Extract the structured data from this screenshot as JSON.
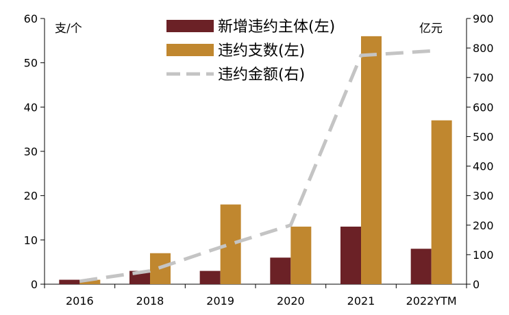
{
  "chart_data": {
    "type": "bar",
    "categories": [
      "2016",
      "2018",
      "2019",
      "2020",
      "2021",
      "2022YTM"
    ],
    "series": [
      {
        "name": "新增违约主体(左)",
        "kind": "bar",
        "axis": "left",
        "color": "#6b2126",
        "values": [
          1,
          3,
          3,
          6,
          13,
          8
        ]
      },
      {
        "name": "违约支数(左)",
        "kind": "bar",
        "axis": "left",
        "color": "#c0872f",
        "values": [
          1,
          7,
          18,
          13,
          56,
          37
        ]
      },
      {
        "name": "违约金额(右)",
        "kind": "line",
        "style": "dashed",
        "axis": "right",
        "color": "#c4c4c4",
        "values": [
          10,
          45,
          125,
          200,
          775,
          790
        ]
      }
    ],
    "y_left": {
      "unit": "支/个",
      "min": 0,
      "max": 60,
      "ticks": [
        "0",
        "10",
        "20",
        "30",
        "40",
        "50",
        "60"
      ]
    },
    "y_right": {
      "unit": "亿元",
      "min": 0,
      "max": 900,
      "ticks": [
        "0",
        "100",
        "200",
        "300",
        "400",
        "500",
        "600",
        "700",
        "800",
        "900"
      ]
    },
    "legend": "top-center",
    "grid": false
  }
}
